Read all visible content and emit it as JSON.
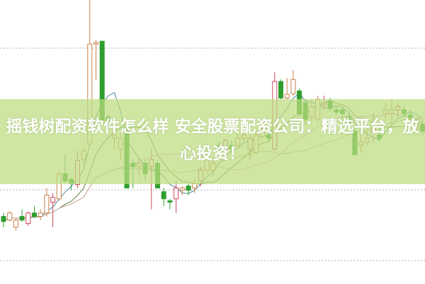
{
  "headline": "摇钱树配资软件怎么样 安全股票配资公司：精选平台，放心投资！",
  "colors": {
    "up": "#c9804a",
    "up_alt": "#d0485a",
    "down": "#2f9e2f",
    "grid": "#9a9a9a",
    "banner": "#bcdc80",
    "ma": [
      "#5c8fa3",
      "#6f8a4f",
      "#e6a3dc",
      "#c8b49c"
    ]
  },
  "chart_data": {
    "type": "candlestick",
    "title": "",
    "xlabel": "",
    "ylabel": "",
    "ylim": [
      0,
      100
    ],
    "grid": "horizontal dotted",
    "moving_averages": [
      5,
      10,
      20,
      30
    ],
    "ohlc": [
      [
        23.8,
        25,
        20,
        22
      ],
      [
        22.5,
        25.5,
        22,
        25
      ],
      [
        20,
        23,
        18.8,
        22.5
      ],
      [
        23.8,
        26.3,
        22,
        22.5
      ],
      [
        21.3,
        25.5,
        20.5,
        25
      ],
      [
        25,
        27.5,
        23.3,
        23.8
      ],
      [
        23.8,
        26.3,
        22.5,
        25
      ],
      [
        25,
        33.8,
        23.8,
        31.3
      ],
      [
        28.8,
        32,
        20,
        30.5
      ],
      [
        30,
        40,
        29.3,
        38.8
      ],
      [
        38.8,
        45.5,
        35.5,
        36.3
      ],
      [
        36.8,
        37.5,
        33,
        35.5
      ],
      [
        35,
        47,
        33.8,
        43.5
      ],
      [
        43.8,
        48,
        41.3,
        46.8
      ],
      [
        49.3,
        100,
        48.8,
        84.5
      ],
      [
        84.5,
        85.8,
        72,
        85
      ],
      [
        85.5,
        85.5,
        56.3,
        57.5
      ],
      [
        58.8,
        60,
        55,
        57.5
      ],
      [
        51.3,
        56.3,
        47.5,
        52.5
      ],
      [
        47.5,
        53.8,
        43.8,
        51.3
      ],
      [
        53.8,
        55,
        33.8,
        33.8
      ],
      [
        42.5,
        43.8,
        33.8,
        41.3
      ],
      [
        41.3,
        44.5,
        37.5,
        42.5
      ],
      [
        42.5,
        43.8,
        36.3,
        38.8
      ],
      [
        41.3,
        47.5,
        26.3,
        43.8
      ],
      [
        42.5,
        43.8,
        33.8,
        33.8
      ],
      [
        32.5,
        33.8,
        27.5,
        30
      ],
      [
        29.3,
        30,
        26.3,
        28.8
      ],
      [
        30,
        36.3,
        25,
        33.8
      ],
      [
        33,
        34.5,
        31.3,
        33.8
      ],
      [
        34.5,
        35.5,
        31.3,
        33
      ],
      [
        33.8,
        37.5,
        32,
        35.5
      ],
      [
        36.3,
        41.3,
        34.5,
        40
      ],
      [
        40,
        47.5,
        38.8,
        46.3
      ],
      [
        40,
        44.5,
        38,
        42.5
      ],
      [
        48.8,
        50,
        46.3,
        47
      ],
      [
        47.5,
        51.3,
        46.3,
        50.5
      ],
      [
        48.8,
        50.5,
        46.3,
        47.5
      ],
      [
        48.8,
        53,
        47.5,
        51.3
      ],
      [
        51.3,
        53.8,
        50,
        52.5
      ],
      [
        47.5,
        52.5,
        43.8,
        51.3
      ],
      [
        46.3,
        53.8,
        45.5,
        52.5
      ],
      [
        52,
        56.3,
        51.3,
        54.5
      ],
      [
        52.5,
        53.8,
        50,
        51.3
      ],
      [
        47.5,
        74.5,
        47,
        71.3
      ],
      [
        71.3,
        72,
        65,
        65.5
      ],
      [
        65.5,
        72.5,
        65,
        66.8
      ],
      [
        67,
        75.3,
        66.3,
        72
      ],
      [
        68,
        68.8,
        58.8,
        60
      ],
      [
        63.8,
        65,
        56.3,
        58
      ],
      [
        58.8,
        65,
        57.5,
        62.5
      ],
      [
        58,
        66.3,
        57,
        65
      ],
      [
        63,
        66.3,
        61.3,
        63.8
      ],
      [
        64.5,
        65.5,
        60.5,
        61.8
      ],
      [
        61.3,
        62.5,
        59.5,
        60.5
      ],
      [
        61.3,
        62.5,
        58,
        60
      ],
      [
        58.8,
        60,
        55,
        56.3
      ],
      [
        53.8,
        55,
        45.5,
        45.5
      ],
      [
        48.8,
        52.5,
        46.3,
        50
      ],
      [
        50,
        53.8,
        48.8,
        51.3
      ],
      [
        53.3,
        60,
        50,
        55
      ],
      [
        52.5,
        55,
        50,
        51.3
      ],
      [
        60,
        63.8,
        57.5,
        61.3
      ],
      [
        60,
        65,
        56.3,
        61.3
      ],
      [
        61.3,
        63.8,
        58.8,
        62.5
      ],
      [
        61.3,
        62.5,
        58.8,
        60
      ],
      [
        59.5,
        61.3,
        57.5,
        58.5
      ],
      [
        54.5,
        58.8,
        52.5,
        56.3
      ],
      [
        56.3,
        57.5,
        52.5,
        53.8
      ]
    ]
  }
}
